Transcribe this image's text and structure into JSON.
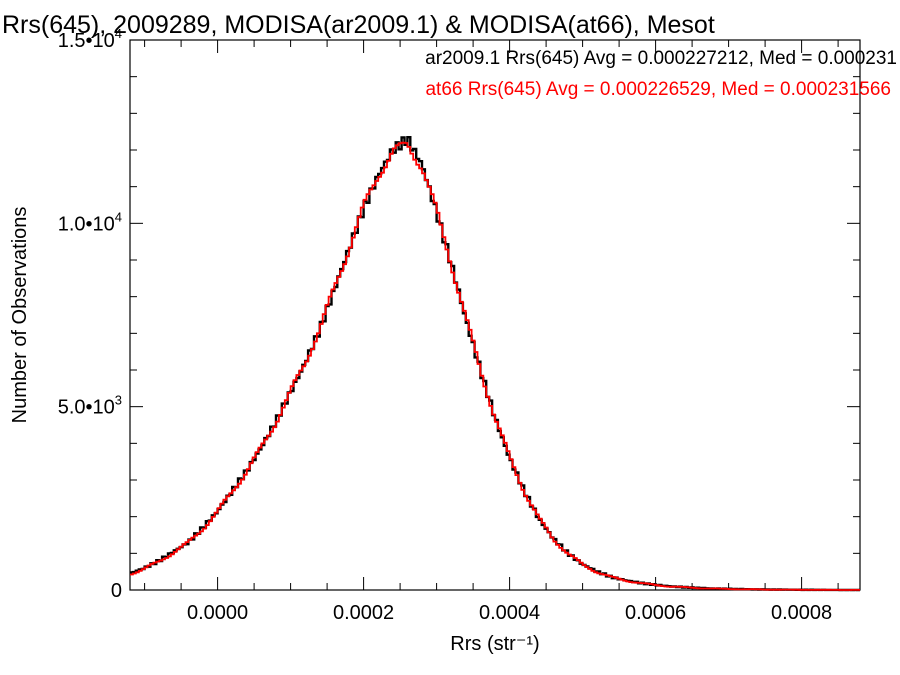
{
  "chart_data": {
    "type": "line",
    "title": "Rrs(645), 2009289, MODISA(ar2009.1) & MODISA(at66), Mesot",
    "xlabel": "Rrs (str⁻¹)",
    "ylabel": "Number of Observations",
    "xlim": [
      -0.00012,
      0.00088
    ],
    "ylim": [
      0,
      15000
    ],
    "x_ticks": [
      0.0,
      0.0002,
      0.0004,
      0.0006,
      0.0008
    ],
    "x_tick_labels": [
      "0.0000",
      "0.0002",
      "0.0004",
      "0.0006",
      "0.0008"
    ],
    "y_ticks": [
      0,
      5000,
      10000,
      15000
    ],
    "y_tick_labels": [
      {
        "mantissa": "0",
        "exponent": ""
      },
      {
        "mantissa": "5.0•10",
        "exponent": "3"
      },
      {
        "mantissa": "1.0•10",
        "exponent": "4"
      },
      {
        "mantissa": "1.5•10",
        "exponent": "4"
      }
    ],
    "legend_placement": "top-right",
    "annotations": [
      {
        "text": "ar2009.1 Rrs(645) Avg = 0.000227212, Med = 0.000231",
        "color": "#000000"
      },
      {
        "text": "at66 Rrs(645) Avg = 0.000226529, Med = 0.000231566",
        "color": "#ff0000"
      }
    ],
    "x": [
      -0.00012,
      -0.0001,
      -8e-05,
      -6e-05,
      -4e-05,
      -2e-05,
      0.0,
      2e-05,
      4e-05,
      6e-05,
      8e-05,
      0.0001,
      0.00012,
      0.00014,
      0.00016,
      0.00018,
      0.0002,
      0.00022,
      0.00024,
      0.00026,
      0.00028,
      0.0003,
      0.00032,
      0.00034,
      0.00036,
      0.00038,
      0.0004,
      0.00042,
      0.00044,
      0.00046,
      0.00048,
      0.0005,
      0.00052,
      0.00054,
      0.00056,
      0.00058,
      0.0006,
      0.00062,
      0.00064,
      0.00066,
      0.00068,
      0.0007,
      0.00072,
      0.00074,
      0.00076,
      0.00078,
      0.0008,
      0.00082,
      0.00084,
      0.00086,
      0.00088
    ],
    "series": [
      {
        "name": "ar2009.1",
        "color": "#000000",
        "values": [
          450,
          600,
          800,
          1050,
          1300,
          1700,
          2150,
          2700,
          3250,
          3900,
          4600,
          5400,
          6200,
          7100,
          8200,
          9300,
          10400,
          11300,
          12000,
          12300,
          11600,
          10300,
          8900,
          7400,
          6000,
          4700,
          3600,
          2700,
          1950,
          1400,
          1000,
          700,
          500,
          350,
          260,
          190,
          140,
          100,
          75,
          55,
          40,
          30,
          22,
          16,
          12,
          9,
          6,
          4,
          3,
          2,
          1
        ]
      },
      {
        "name": "at66",
        "color": "#ff0000",
        "values": [
          430,
          580,
          780,
          1030,
          1290,
          1680,
          2130,
          2690,
          3240,
          3880,
          4590,
          5390,
          6210,
          7120,
          8230,
          9320,
          10430,
          11320,
          11950,
          12150,
          11550,
          10320,
          8920,
          7420,
          6010,
          4710,
          3610,
          2700,
          1950,
          1390,
          990,
          690,
          490,
          345,
          255,
          185,
          135,
          97,
          72,
          52,
          38,
          28,
          20,
          15,
          11,
          8,
          5,
          4,
          3,
          2,
          1
        ]
      }
    ]
  }
}
